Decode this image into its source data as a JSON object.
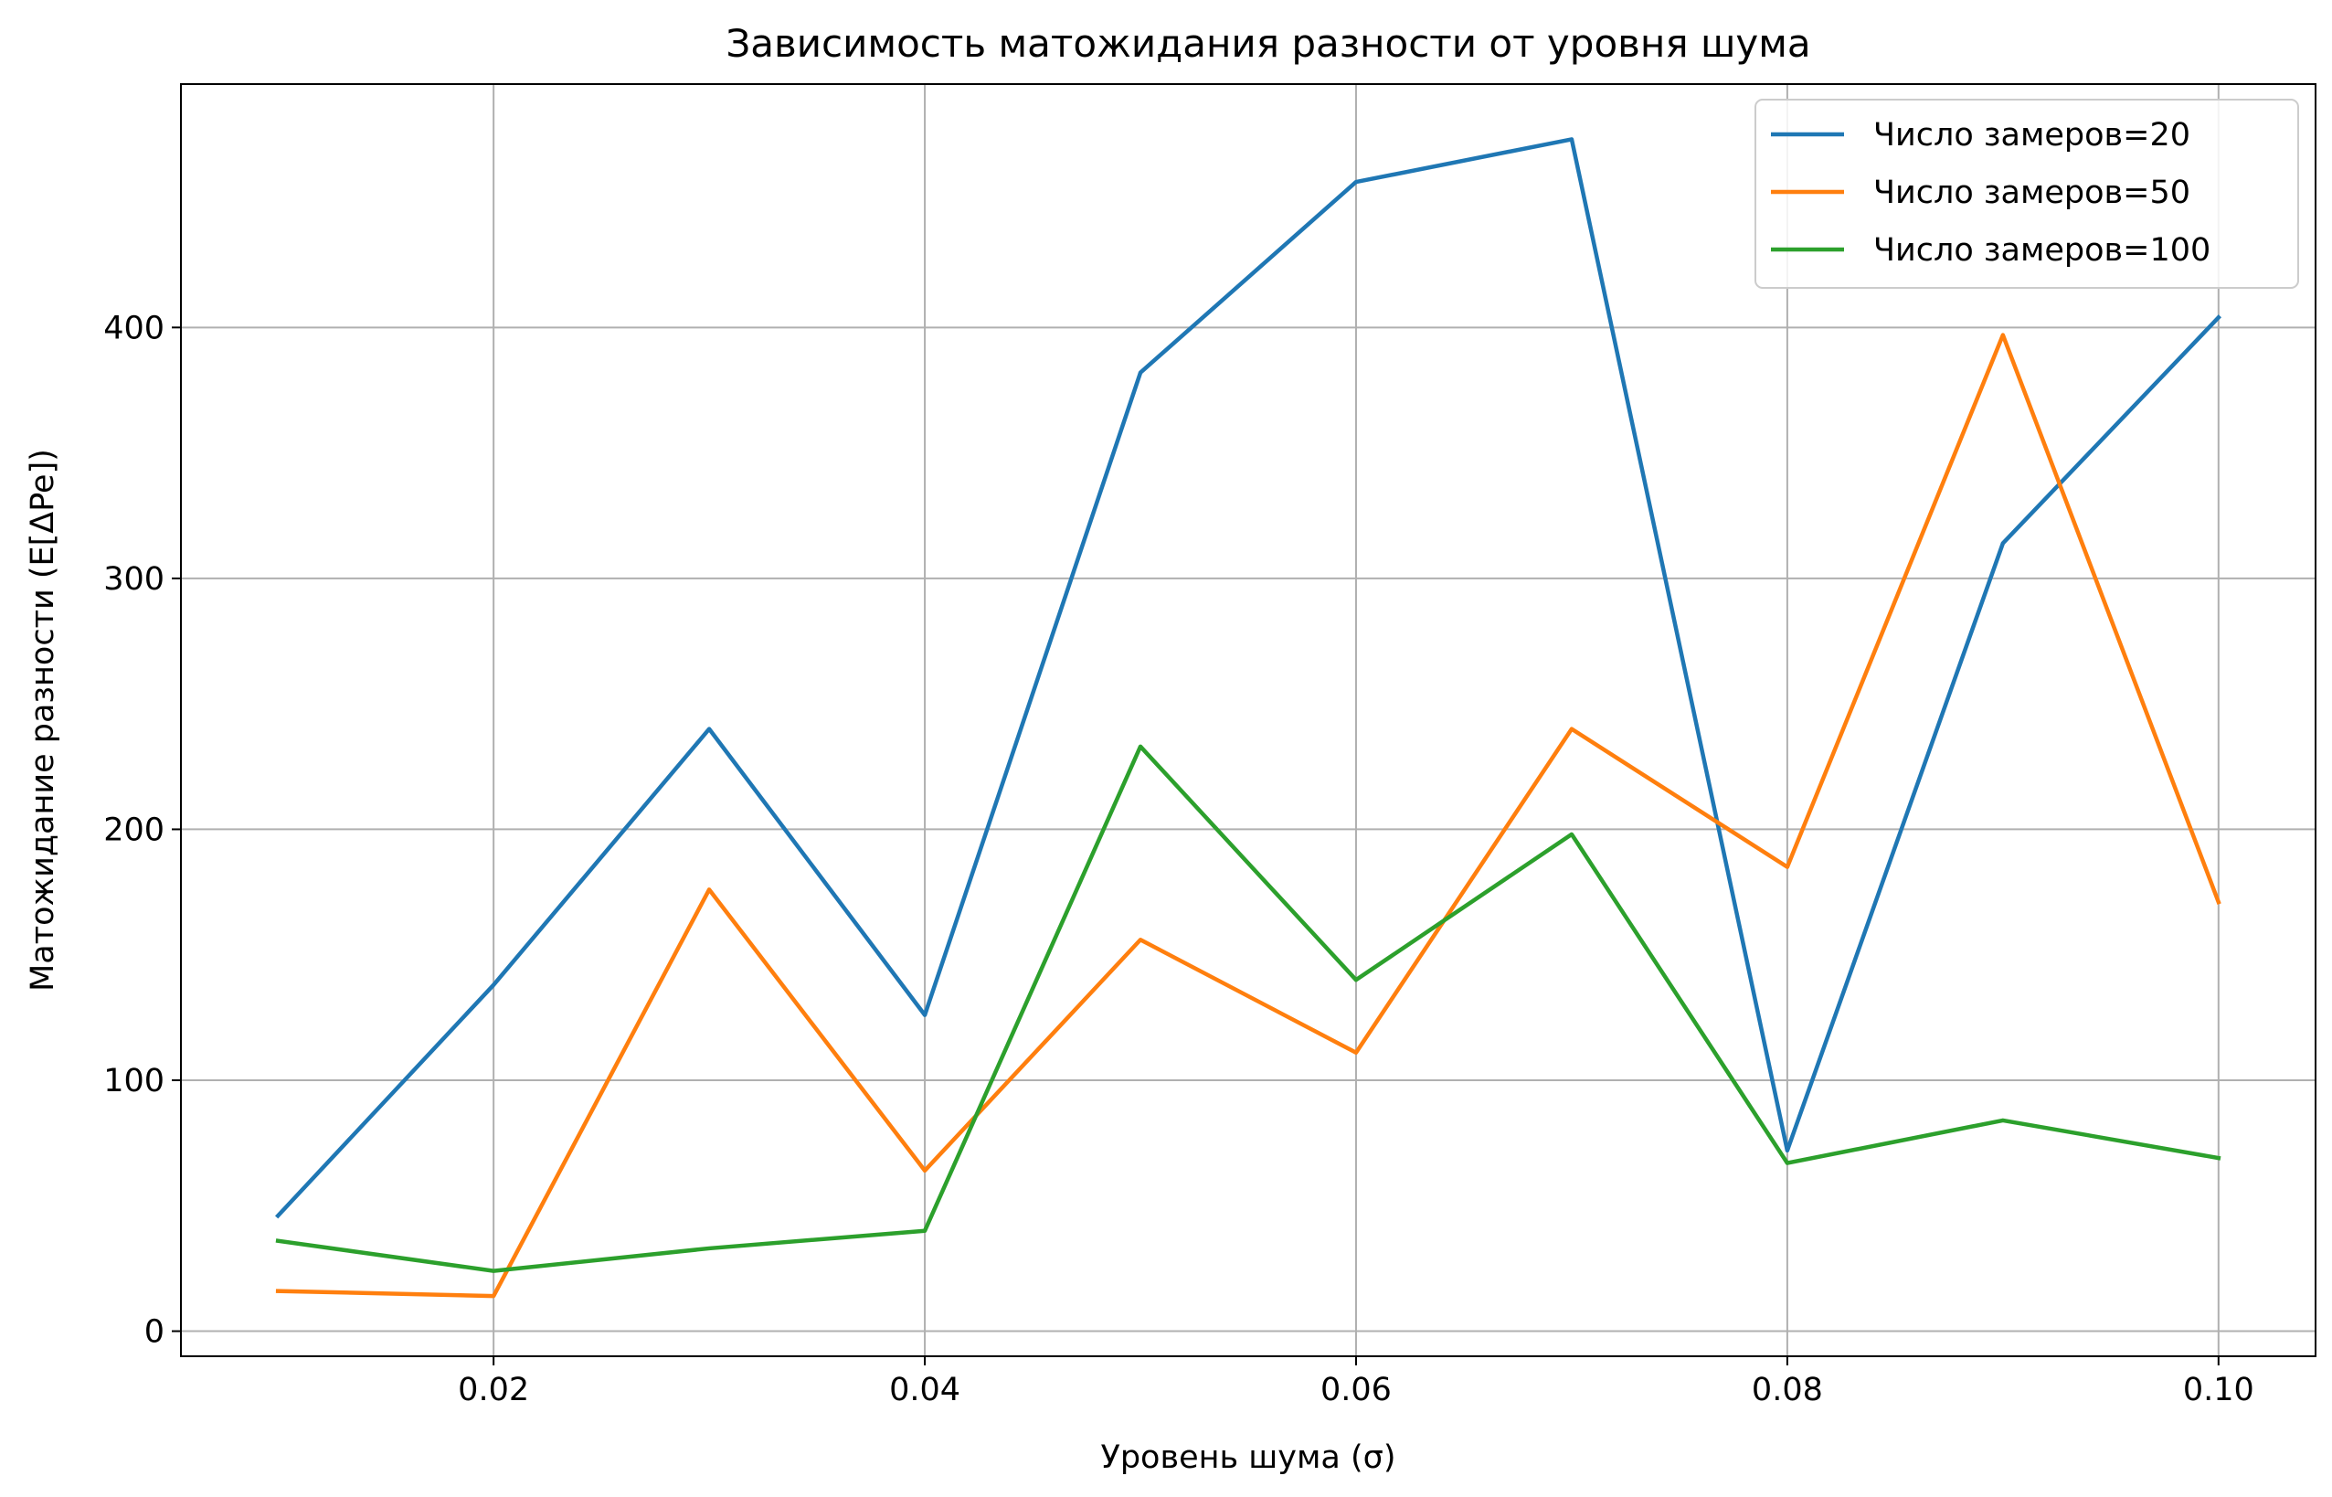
{
  "chart_data": {
    "type": "line",
    "title": "Зависимость матожидания разности от уровня шума",
    "xlabel": "Уровень шума (σ)",
    "ylabel": "Матожидание разности (E[ΔPe])",
    "x": [
      0.01,
      0.02,
      0.03,
      0.04,
      0.05,
      0.06,
      0.07,
      0.08,
      0.09,
      0.1
    ],
    "xlim": [
      0.0055,
      0.1045
    ],
    "ylim": [
      -10,
      497
    ],
    "x_ticks": [
      0.02,
      0.04,
      0.06,
      0.08,
      0.1
    ],
    "x_tick_labels": [
      "0.02",
      "0.04",
      "0.06",
      "0.08",
      "0.10"
    ],
    "y_ticks": [
      0,
      100,
      200,
      300,
      400
    ],
    "y_tick_labels": [
      "0",
      "100",
      "200",
      "300",
      "400"
    ],
    "grid": true,
    "legend_position": "top-right",
    "series": [
      {
        "name": "Число замеров=20",
        "color": "#1f77b4",
        "values": [
          46,
          138,
          240,
          126,
          382,
          458,
          475,
          72,
          314,
          404
        ]
      },
      {
        "name": "Число замеров=50",
        "color": "#ff7f0e",
        "values": [
          16,
          14,
          176,
          64,
          156,
          111,
          240,
          185,
          397,
          171
        ]
      },
      {
        "name": "Число замеров=100",
        "color": "#2ca02c",
        "values": [
          36,
          24,
          33,
          40,
          233,
          140,
          198,
          67,
          84,
          69
        ]
      }
    ]
  }
}
